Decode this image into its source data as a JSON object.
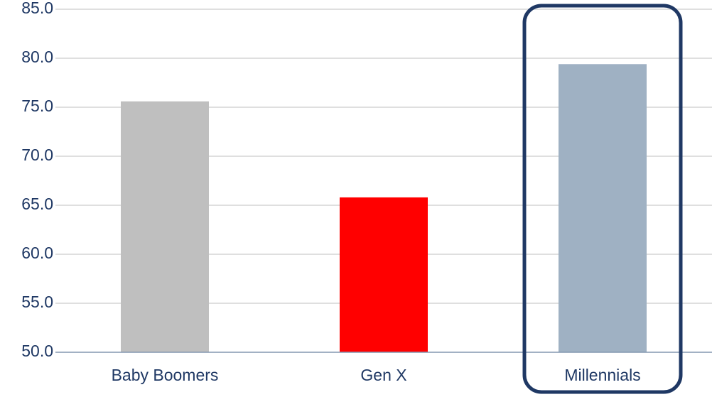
{
  "chart_data": {
    "type": "bar",
    "categories": [
      "Baby Boomers",
      "Gen X",
      "Millennials"
    ],
    "values": [
      75.6,
      65.8,
      79.4
    ],
    "bar_colors": [
      "#bfbfbf",
      "#ff0000",
      "#9fb1c3"
    ],
    "title": "",
    "xlabel": "",
    "ylabel": "",
    "ylim": [
      50,
      85
    ],
    "yticks": [
      "50.0",
      "55.0",
      "60.0",
      "65.0",
      "70.0",
      "75.0",
      "80.0",
      "85.0"
    ],
    "grid": true,
    "highlight": {
      "category": "Millennials",
      "style": "rounded-outline",
      "color": "#1f3864"
    },
    "colors": {
      "axis": "#8497b0",
      "grid": "#bfbfbf",
      "text": "#1f3864"
    }
  }
}
